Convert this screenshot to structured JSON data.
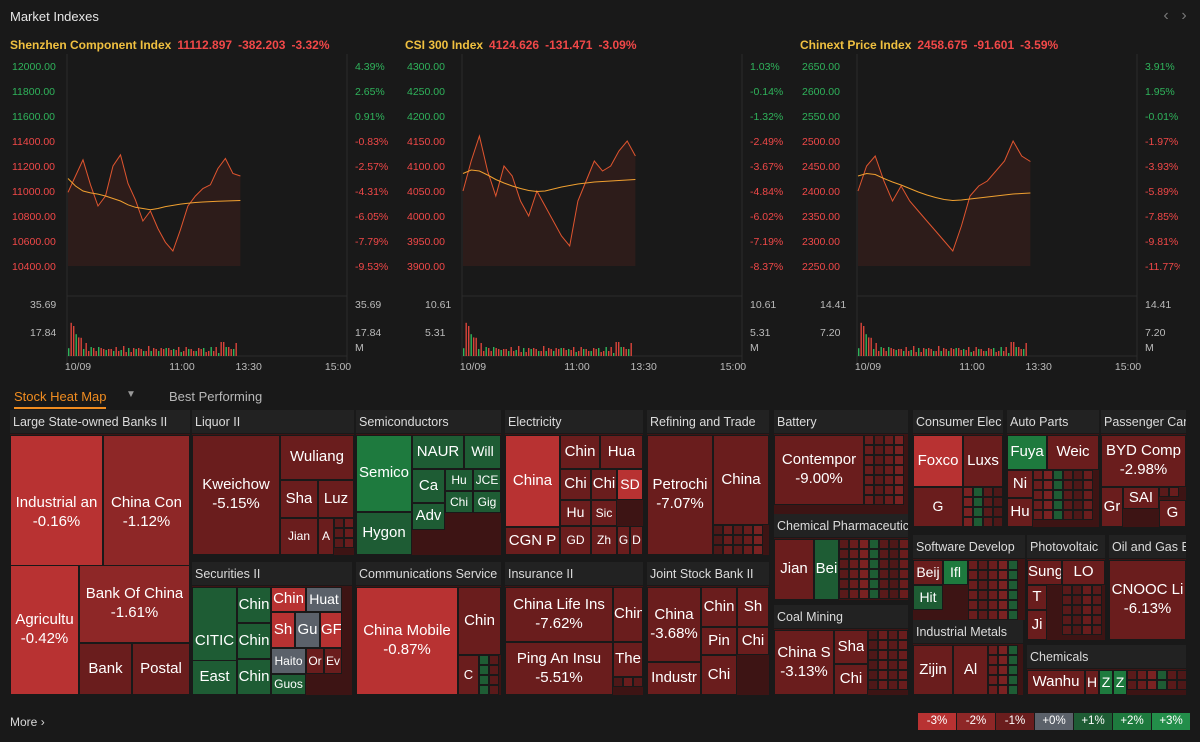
{
  "header": {
    "title": "Market Indexes"
  },
  "indexes": [
    {
      "name": "Shenzhen Component Index",
      "value": "11112.897",
      "change": "-382.203",
      "pct": "-3.32%",
      "ylabels": [
        "12000.00",
        "11800.00",
        "11600.00",
        "11400.00",
        "11200.00",
        "11000.00",
        "10800.00",
        "10600.00",
        "10400.00"
      ],
      "pctlabels": [
        "4.39%",
        "2.65%",
        "0.91%",
        "-0.83%",
        "-2.57%",
        "-4.31%",
        "-6.05%",
        "-7.79%",
        "-9.53%"
      ],
      "vol": [
        "35.69",
        "17.84"
      ],
      "vol_unit": "M",
      "xticks": [
        "10/09",
        "11:00",
        "13:30",
        "15:00"
      ],
      "price": [
        10990,
        11120,
        11250,
        11050,
        10880,
        10960,
        11200,
        11290,
        11060,
        10930,
        10760,
        10840,
        10700,
        10590,
        10520,
        10690,
        10880,
        10960,
        11020,
        11050,
        11180,
        11260,
        11140,
        11120
      ],
      "avg": [
        11100,
        11040,
        11000,
        10985,
        10975,
        10960,
        10940,
        10920,
        10890,
        10870,
        10860,
        10850,
        10860,
        10875,
        10885,
        10895,
        10902,
        10908,
        10912,
        10915,
        10918,
        10920,
        10922,
        10924
      ],
      "ylim": [
        10400,
        12000
      ]
    },
    {
      "name": "CSI 300 Index",
      "value": "4124.626",
      "change": "-131.471",
      "pct": "-3.09%",
      "ylabels": [
        "4300.00",
        "4250.00",
        "4200.00",
        "4150.00",
        "4100.00",
        "4050.00",
        "4000.00",
        "3950.00",
        "3900.00"
      ],
      "pctlabels": [
        "1.03%",
        "-0.14%",
        "-1.32%",
        "-2.49%",
        "-3.67%",
        "-4.84%",
        "-6.02%",
        "-7.19%",
        "-8.37%"
      ],
      "vol": [
        "10.61",
        "5.31"
      ],
      "vol_unit": "M",
      "xticks": [
        "10/09",
        "11:00",
        "13:30",
        "15:00"
      ],
      "price": [
        4050,
        4110,
        4160,
        4090,
        4040,
        4100,
        4080,
        4030,
        4000,
        4050,
        4020,
        3990,
        3960,
        3940,
        4030,
        4070,
        4110,
        4090,
        4100,
        4130,
        4150,
        4120
      ],
      "avg": [
        4085,
        4092,
        4090,
        4082,
        4073,
        4066,
        4060,
        4055,
        4051,
        4049,
        4050,
        4054,
        4058,
        4061,
        4064,
        4066,
        4068,
        4069,
        4070,
        4071,
        4072,
        4073
      ],
      "ylim": [
        3900,
        4300
      ]
    },
    {
      "name": "Chinext Price Index",
      "value": "2458.675",
      "change": "-91.601",
      "pct": "-3.59%",
      "ylabels": [
        "2650.00",
        "2600.00",
        "2550.00",
        "2500.00",
        "2450.00",
        "2400.00",
        "2350.00",
        "2300.00",
        "2250.00"
      ],
      "pctlabels": [
        "3.91%",
        "1.95%",
        "-0.01%",
        "-1.97%",
        "-3.93%",
        "-5.89%",
        "-7.85%",
        "-9.81%",
        "-11.77%"
      ],
      "vol": [
        "14.41",
        "7.20"
      ],
      "vol_unit": "M",
      "xticks": [
        "10/09",
        "11:00",
        "13:30",
        "15:00"
      ],
      "price": [
        2400,
        2450,
        2470,
        2420,
        2380,
        2410,
        2380,
        2360,
        2340,
        2320,
        2300,
        2280,
        2330,
        2390,
        2410,
        2420,
        2440,
        2460,
        2500,
        2470,
        2459
      ],
      "avg": [
        2430,
        2435,
        2433,
        2425,
        2418,
        2412,
        2405,
        2398,
        2392,
        2387,
        2383,
        2381,
        2382,
        2384,
        2386,
        2388,
        2390,
        2392,
        2394,
        2395,
        2396
      ],
      "ylim": [
        2250,
        2650
      ]
    }
  ],
  "heatmap_tabs": {
    "active": "Stock Heat Map",
    "other": "Best Performing"
  },
  "colors": {
    "r3": "#b83232",
    "r2": "#8e2727",
    "r1": "#6a1d1d",
    "flat": "#5b616a",
    "g1": "#1e5c34",
    "g2": "#1e7a3e",
    "g3": "#238e4a",
    "chart_line": "#e0552f",
    "avg_line": "#f0a030"
  },
  "sectors": [
    {
      "name": "Large State-owned Banks II",
      "tiles": [
        {
          "n": "Industrial an",
          "p": "-0.16%"
        },
        {
          "n": "China Con",
          "p": "-1.12%"
        },
        {
          "n": "Agricultu",
          "p": "-0.42%"
        },
        {
          "n": "Bank Of China",
          "p": "-1.61%"
        },
        {
          "n": "Bank",
          "p": ""
        },
        {
          "n": "Postal",
          "p": ""
        }
      ]
    },
    {
      "name": "Liquor II",
      "tiles": [
        {
          "n": "Kweichow",
          "p": "-5.15%"
        },
        {
          "n": "Wuliang",
          "p": ""
        },
        {
          "n": "Sha",
          "p": ""
        },
        {
          "n": "Luz",
          "p": ""
        },
        {
          "n": "Jian",
          "p": ""
        },
        {
          "n": "A",
          "p": ""
        }
      ]
    },
    {
      "name": "Semiconductors",
      "tiles": [
        {
          "n": "Semico",
          "p": ""
        },
        {
          "n": "NAUR",
          "p": ""
        },
        {
          "n": "Will",
          "p": ""
        },
        {
          "n": "Ca",
          "p": ""
        },
        {
          "n": "Hu",
          "p": ""
        },
        {
          "n": "JCE",
          "p": ""
        },
        {
          "n": "Adv",
          "p": ""
        },
        {
          "n": "Chi",
          "p": ""
        },
        {
          "n": "Gig",
          "p": ""
        },
        {
          "n": "Hygon",
          "p": ""
        }
      ]
    },
    {
      "name": "Electricity",
      "tiles": [
        {
          "n": "China",
          "p": ""
        },
        {
          "n": "Chin",
          "p": ""
        },
        {
          "n": "Hua",
          "p": ""
        },
        {
          "n": "Chi",
          "p": ""
        },
        {
          "n": "Chi",
          "p": ""
        },
        {
          "n": "SD",
          "p": ""
        },
        {
          "n": "Hu",
          "p": ""
        },
        {
          "n": "Sic",
          "p": ""
        },
        {
          "n": "CGN P",
          "p": ""
        },
        {
          "n": "GD",
          "p": ""
        },
        {
          "n": "Zh",
          "p": ""
        },
        {
          "n": "G",
          "p": ""
        },
        {
          "n": "D",
          "p": ""
        }
      ]
    },
    {
      "name": "Refining and Trade",
      "tiles": [
        {
          "n": "Petrochi",
          "p": "-7.07%"
        },
        {
          "n": "China",
          "p": ""
        }
      ]
    },
    {
      "name": "Battery",
      "tiles": [
        {
          "n": "Contempor",
          "p": "-9.00%"
        }
      ]
    },
    {
      "name": "Consumer Elec",
      "tiles": [
        {
          "n": "Foxco",
          "p": ""
        },
        {
          "n": "Luxs",
          "p": ""
        },
        {
          "n": "G",
          "p": ""
        }
      ]
    },
    {
      "name": "Auto Parts",
      "tiles": [
        {
          "n": "Fuya",
          "p": ""
        },
        {
          "n": "Weic",
          "p": ""
        },
        {
          "n": "Ni",
          "p": ""
        },
        {
          "n": "Hu",
          "p": ""
        }
      ]
    },
    {
      "name": "Passenger Car",
      "tiles": [
        {
          "n": "BYD Comp",
          "p": "-2.98%"
        },
        {
          "n": "Gr",
          "p": ""
        },
        {
          "n": "SAI",
          "p": ""
        },
        {
          "n": "G",
          "p": ""
        }
      ]
    },
    {
      "name": "Chemical Pharmaceutic",
      "tiles": [
        {
          "n": "Jian",
          "p": ""
        },
        {
          "n": "Bei",
          "p": ""
        }
      ]
    },
    {
      "name": "Software Develop",
      "tiles": [
        {
          "n": "Beij",
          "p": ""
        },
        {
          "n": "Ifl",
          "p": ""
        },
        {
          "n": "Hit",
          "p": ""
        }
      ]
    },
    {
      "name": "Photovoltaic",
      "tiles": [
        {
          "n": "Sungr",
          "p": ""
        },
        {
          "n": "LO",
          "p": ""
        },
        {
          "n": "T",
          "p": ""
        },
        {
          "n": "Ji",
          "p": ""
        }
      ]
    },
    {
      "name": "Oil and Gas E",
      "tiles": [
        {
          "n": "CNOOC Li",
          "p": "-6.13%"
        }
      ]
    },
    {
      "name": "Securities II",
      "tiles": [
        {
          "n": "CITIC",
          "p": ""
        },
        {
          "n": "Chin",
          "p": ""
        },
        {
          "n": "Chin",
          "p": ""
        },
        {
          "n": "Huat",
          "p": ""
        },
        {
          "n": "Chin",
          "p": ""
        },
        {
          "n": "Sh",
          "p": ""
        },
        {
          "n": "Gu",
          "p": ""
        },
        {
          "n": "GF",
          "p": ""
        },
        {
          "n": "East",
          "p": ""
        },
        {
          "n": "Haito",
          "p": ""
        },
        {
          "n": "Or",
          "p": ""
        },
        {
          "n": "Ev",
          "p": ""
        },
        {
          "n": "Chin",
          "p": ""
        },
        {
          "n": "Guos",
          "p": ""
        }
      ]
    },
    {
      "name": "Communications Service",
      "tiles": [
        {
          "n": "China Mobile",
          "p": "-0.87%"
        },
        {
          "n": "Chin",
          "p": ""
        },
        {
          "n": "C",
          "p": ""
        }
      ]
    },
    {
      "name": "Insurance II",
      "tiles": [
        {
          "n": "China Life Ins",
          "p": "-7.62%"
        },
        {
          "n": "Chin",
          "p": ""
        },
        {
          "n": "Ping An Insu",
          "p": "-5.51%"
        },
        {
          "n": "The",
          "p": ""
        }
      ]
    },
    {
      "name": "Joint Stock Bank II",
      "tiles": [
        {
          "n": "China",
          "p": "-3.68%"
        },
        {
          "n": "Chin",
          "p": ""
        },
        {
          "n": "Sh",
          "p": ""
        },
        {
          "n": "Pin",
          "p": ""
        },
        {
          "n": "Chi",
          "p": ""
        },
        {
          "n": "Industr",
          "p": ""
        },
        {
          "n": "Chi",
          "p": ""
        }
      ]
    },
    {
      "name": "Coal Mining",
      "tiles": [
        {
          "n": "China S",
          "p": "-3.13%"
        },
        {
          "n": "Sha",
          "p": ""
        },
        {
          "n": "Chi",
          "p": ""
        }
      ]
    },
    {
      "name": "Industrial Metals",
      "tiles": [
        {
          "n": "Zijin",
          "p": ""
        },
        {
          "n": "Al",
          "p": ""
        }
      ]
    },
    {
      "name": "Chemicals",
      "tiles": [
        {
          "n": "Wanhu",
          "p": ""
        },
        {
          "n": "H",
          "p": ""
        },
        {
          "n": "Z",
          "p": ""
        },
        {
          "n": "Z",
          "p": ""
        }
      ]
    }
  ],
  "more_label": "More",
  "legend": [
    "-3%",
    "-2%",
    "-1%",
    "+0%",
    "+1%",
    "+2%",
    "+3%"
  ]
}
